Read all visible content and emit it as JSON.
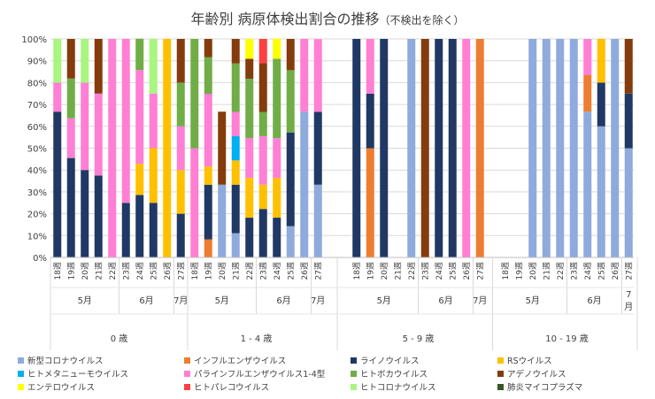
{
  "chart_data": {
    "type": "bar",
    "stacked": true,
    "normalized": true,
    "title": "年齢別 病原体検出割合の推移",
    "subtitle": "（不検出を除く）",
    "ylim": [
      0,
      100
    ],
    "y_ticks": [
      "0%",
      "10%",
      "20%",
      "30%",
      "40%",
      "50%",
      "60%",
      "70%",
      "80%",
      "90%",
      "100%"
    ],
    "week_suffix": "週",
    "groups": [
      {
        "label": "0 歳",
        "months": [
          {
            "label": "5月",
            "count": 5
          },
          {
            "label": "6月",
            "count": 4
          },
          {
            "label": "7月",
            "count": 1
          }
        ],
        "weeks": [
          "18",
          "19",
          "20",
          "21",
          "22",
          "23",
          "24",
          "25",
          "26",
          "27"
        ]
      },
      {
        "label": "1 - 4 歳",
        "months": [
          {
            "label": "5月",
            "count": 5
          },
          {
            "label": "6月",
            "count": 4
          },
          {
            "label": "7月",
            "count": 1
          }
        ],
        "weeks": [
          "18",
          "19",
          "20",
          "21",
          "22",
          "23",
          "24",
          "25",
          "26",
          "27"
        ]
      },
      {
        "label": "5 - 9 歳",
        "months": [
          {
            "label": "5月",
            "count": 5
          },
          {
            "label": "6月",
            "count": 4
          },
          {
            "label": "7月",
            "count": 1
          }
        ],
        "weeks": [
          "18",
          "19",
          "20",
          "21",
          "22",
          "23",
          "24",
          "25",
          "26",
          "27"
        ]
      },
      {
        "label": "10 - 19 歳",
        "months": [
          {
            "label": "5月",
            "count": 5
          },
          {
            "label": "6月",
            "count": 4
          },
          {
            "label": "7\n月",
            "count": 1
          }
        ],
        "weeks": [
          "18",
          "19",
          "20",
          "21",
          "22",
          "23",
          "24",
          "25",
          "26",
          "27"
        ]
      }
    ],
    "series": [
      {
        "name": "新型コロナウイルス",
        "color": "#8FAADC",
        "values": [
          0,
          0,
          0,
          0,
          0,
          0,
          0,
          0,
          0,
          0,
          0,
          0,
          33.3,
          11.1,
          0,
          0,
          0,
          14.3,
          66.7,
          33.3,
          0,
          0,
          0,
          0,
          100,
          0,
          0,
          0,
          0,
          0,
          0,
          0,
          100,
          100,
          100,
          100,
          66.7,
          60,
          100,
          50
        ]
      },
      {
        "name": "インフルエンザウイルス",
        "color": "#ED7D31",
        "values": [
          0,
          0,
          0,
          0,
          0,
          0,
          0,
          0,
          0,
          0,
          0,
          8.3,
          0,
          0,
          0,
          0,
          0,
          0,
          0,
          0,
          0,
          50,
          0,
          0,
          0,
          0,
          0,
          0,
          0,
          100,
          0,
          0,
          0,
          0,
          0,
          0,
          16.7,
          0,
          0,
          0
        ]
      },
      {
        "name": "ライノウイルス",
        "color": "#203864",
        "values": [
          66.7,
          45.5,
          40,
          37.5,
          0,
          25,
          28.6,
          25,
          0,
          20,
          0,
          25,
          0,
          22.2,
          18.2,
          22.2,
          18.2,
          42.9,
          0,
          33.3,
          100,
          25,
          100,
          0,
          0,
          0,
          100,
          100,
          0,
          0,
          0,
          0,
          0,
          0,
          0,
          0,
          0,
          20,
          0,
          25
        ]
      },
      {
        "name": "RSウイルス",
        "color": "#FFC000",
        "values": [
          0,
          0,
          0,
          0,
          0,
          0,
          14.3,
          25,
          100,
          20,
          0,
          8.3,
          0,
          11.1,
          18.2,
          11.1,
          18.2,
          0,
          0,
          0,
          0,
          0,
          0,
          0,
          0,
          0,
          0,
          0,
          0,
          0,
          0,
          0,
          0,
          0,
          0,
          0,
          0,
          20,
          0,
          0
        ]
      },
      {
        "name": "ヒトメタニューモウイルス",
        "color": "#00B0F0",
        "values": [
          0,
          0,
          0,
          0,
          0,
          0,
          0,
          0,
          0,
          0,
          0,
          0,
          0,
          11.1,
          0,
          0,
          0,
          0,
          0,
          0,
          0,
          0,
          0,
          0,
          0,
          0,
          0,
          0,
          0,
          0,
          0,
          0,
          0,
          0,
          0,
          0,
          0,
          0,
          0,
          0
        ]
      },
      {
        "name": "パラインフルエンザウイルス1-4型",
        "color": "#FF7FD4",
        "values": [
          13.3,
          18.2,
          40,
          37.5,
          100,
          75,
          42.9,
          25,
          0,
          20,
          50,
          33.3,
          0,
          11.1,
          18.2,
          22.2,
          18.2,
          0,
          33.3,
          33.3,
          0,
          25,
          0,
          0,
          0,
          0,
          0,
          0,
          100,
          0,
          0,
          0,
          0,
          0,
          0,
          0,
          16.6,
          0,
          0,
          0
        ]
      },
      {
        "name": "ヒトボカウイルス",
        "color": "#70AD47",
        "values": [
          0,
          18.2,
          0,
          0,
          0,
          0,
          14.3,
          0,
          0,
          20,
          50,
          16.7,
          0,
          22.2,
          27.2,
          11.1,
          36.3,
          28.5,
          0,
          0,
          0,
          0,
          0,
          0,
          0,
          0,
          0,
          0,
          0,
          0,
          0,
          0,
          0,
          0,
          0,
          0,
          0,
          0,
          0,
          0
        ]
      },
      {
        "name": "アデノウイルス",
        "color": "#843C0C",
        "values": [
          0,
          18.1,
          0,
          25,
          0,
          0,
          0,
          0,
          0,
          20,
          0,
          8.4,
          33.4,
          11.2,
          9.1,
          22.3,
          0,
          14.3,
          0,
          0,
          0,
          0,
          0,
          0,
          0,
          100,
          0,
          0,
          0,
          0,
          0,
          0,
          0,
          0,
          0,
          0,
          0,
          0,
          0,
          25
        ]
      },
      {
        "name": "エンテロウイルス",
        "color": "#FFFF00",
        "values": [
          0,
          0,
          0,
          0,
          0,
          0,
          0,
          0,
          0,
          0,
          0,
          0,
          0,
          0,
          9.1,
          0,
          9.2,
          0,
          0,
          0,
          0,
          0,
          0,
          0,
          0,
          0,
          0,
          0,
          0,
          0,
          0,
          0,
          0,
          0,
          0,
          0,
          0,
          0,
          0,
          0
        ]
      },
      {
        "name": "ヒトパレコウイルス",
        "color": "#FF4040",
        "values": [
          0,
          0,
          0,
          0,
          0,
          0,
          0,
          0,
          0,
          0,
          0,
          0,
          0,
          0,
          0,
          11.1,
          0,
          0,
          0,
          0,
          0,
          0,
          0,
          0,
          0,
          0,
          0,
          0,
          0,
          0,
          0,
          0,
          0,
          0,
          0,
          0,
          0,
          0,
          0,
          0
        ]
      },
      {
        "name": "ヒトコロナウイルス",
        "color": "#A9F57F",
        "values": [
          20,
          0,
          20,
          0,
          0,
          0,
          0,
          25,
          0,
          0,
          0,
          0,
          0,
          0,
          0,
          0,
          0,
          0,
          0,
          0,
          0,
          0,
          0,
          0,
          0,
          0,
          0,
          0,
          0,
          0,
          0,
          0,
          0,
          0,
          0,
          0,
          0,
          0,
          0,
          0
        ]
      },
      {
        "name": "肺炎マイコプラズマ",
        "color": "#375623",
        "values": [
          0,
          0,
          0,
          0,
          0,
          0,
          0,
          0,
          0,
          0,
          0,
          0,
          0,
          0,
          0,
          0,
          0,
          0,
          0,
          0,
          0,
          0,
          0,
          0,
          0,
          0,
          0,
          0,
          0,
          0,
          0,
          0,
          0,
          0,
          0,
          0,
          0,
          0,
          0,
          0
        ]
      }
    ]
  }
}
